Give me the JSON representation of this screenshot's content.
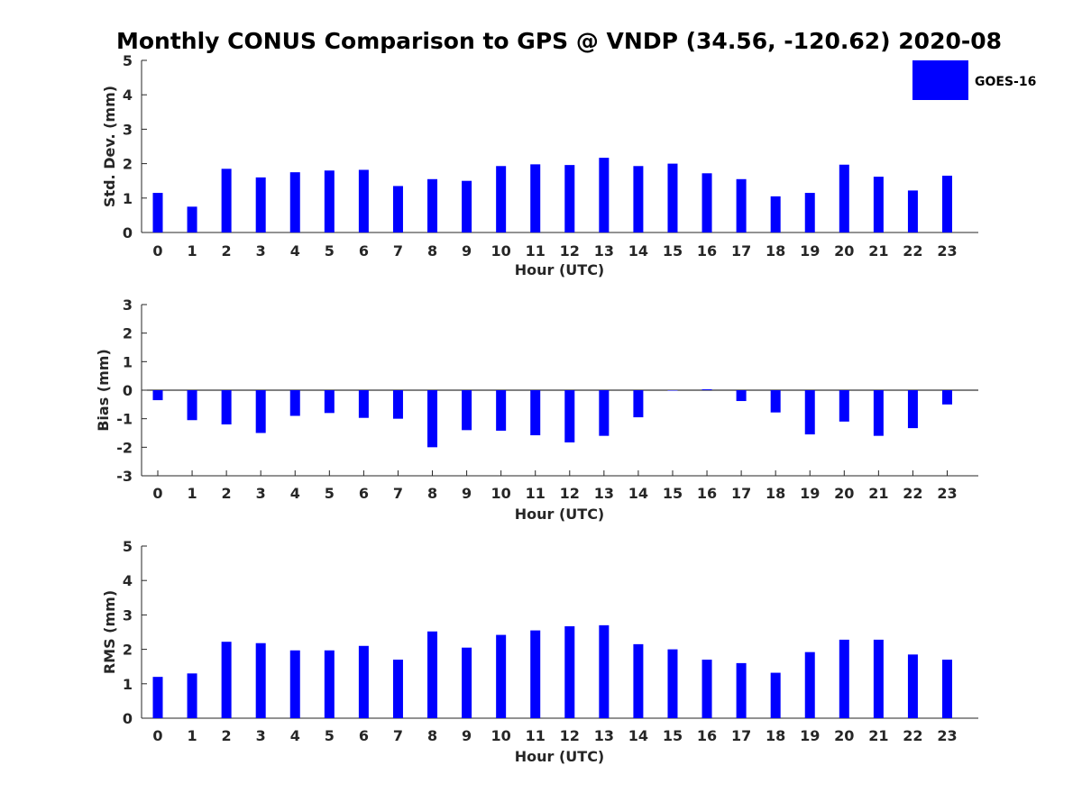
{
  "chart_data": {
    "type": "bar",
    "title": "Monthly CONUS Comparison to GPS @ VNDP (34.56, -120.62) 2020-08",
    "legend": {
      "label": "GOES-16",
      "color": "#0000ff",
      "position": "top-right"
    },
    "categories": [
      "0",
      "1",
      "2",
      "3",
      "4",
      "5",
      "6",
      "7",
      "8",
      "9",
      "10",
      "11",
      "12",
      "13",
      "14",
      "15",
      "16",
      "17",
      "18",
      "19",
      "20",
      "21",
      "22",
      "23"
    ],
    "panels": [
      {
        "key": "std",
        "ylabel": "Std. Dev. (mm)",
        "xlabel": "Hour (UTC)",
        "ylim": [
          0,
          5
        ],
        "yticks": [
          0,
          1,
          2,
          3,
          4,
          5
        ],
        "series": [
          {
            "name": "GOES-16",
            "values": [
              1.15,
              0.75,
              1.85,
              1.6,
              1.75,
              1.8,
              1.82,
              1.35,
              1.55,
              1.5,
              1.93,
              1.98,
              1.96,
              2.17,
              1.93,
              2.0,
              1.72,
              1.55,
              1.05,
              1.15,
              1.97,
              1.62,
              1.22,
              1.65
            ]
          }
        ]
      },
      {
        "key": "bias",
        "ylabel": "Bias (mm)",
        "xlabel": "Hour (UTC)",
        "ylim": [
          -3,
          3
        ],
        "yticks": [
          -3,
          -2,
          -1,
          0,
          1,
          2,
          3
        ],
        "series": [
          {
            "name": "GOES-16",
            "values": [
              -0.35,
              -1.05,
              -1.2,
              -1.5,
              -0.9,
              -0.8,
              -0.97,
              -1.0,
              -2.0,
              -1.4,
              -1.42,
              -1.58,
              -1.83,
              -1.6,
              -0.95,
              0.0,
              0.03,
              -0.38,
              -0.78,
              -1.55,
              -1.1,
              -1.6,
              -1.33,
              -0.5
            ]
          }
        ]
      },
      {
        "key": "rms",
        "ylabel": "RMS (mm)",
        "xlabel": "Hour (UTC)",
        "ylim": [
          0,
          5
        ],
        "yticks": [
          0,
          1,
          2,
          3,
          4,
          5
        ],
        "series": [
          {
            "name": "GOES-16",
            "values": [
              1.2,
              1.3,
              2.22,
              2.18,
              1.97,
              1.97,
              2.1,
              1.7,
              2.52,
              2.05,
              2.42,
              2.55,
              2.67,
              2.7,
              2.15,
              2.0,
              1.7,
              1.6,
              1.32,
              1.92,
              2.28,
              2.28,
              1.85,
              1.7
            ]
          }
        ]
      }
    ]
  }
}
